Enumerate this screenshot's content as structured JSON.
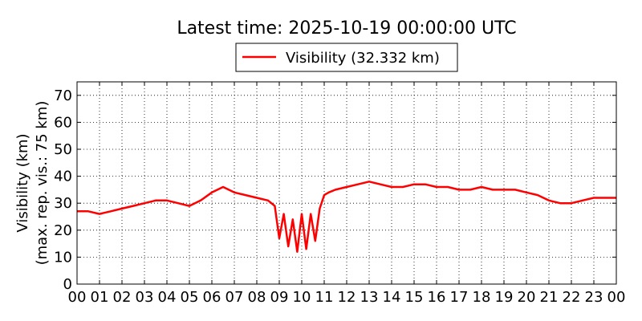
{
  "chart_data": {
    "type": "line",
    "title": "Latest time: 2025-10-19 00:00:00 UTC",
    "ylabel_line1": "Visibility (km)",
    "ylabel_line2": "(max. rep. vis.: 75 km)",
    "xlabel": "",
    "xlim": [
      0,
      24
    ],
    "ylim": [
      0,
      75
    ],
    "grid": true,
    "legend_position": "top-center",
    "x_tick_labels": [
      "00",
      "01",
      "02",
      "03",
      "04",
      "05",
      "06",
      "07",
      "08",
      "09",
      "10",
      "11",
      "12",
      "13",
      "14",
      "15",
      "16",
      "17",
      "18",
      "19",
      "20",
      "21",
      "22",
      "23",
      "00"
    ],
    "y_ticks": [
      0,
      10,
      20,
      30,
      40,
      50,
      60,
      70
    ],
    "series": [
      {
        "name": "Visibility (32.332 km)",
        "color": "#ff0000",
        "x_unit": "hours (UTC)",
        "x": [
          0,
          0.5,
          1,
          1.5,
          2,
          2.5,
          3,
          3.5,
          4,
          4.5,
          5,
          5.5,
          6,
          6.5,
          7,
          7.5,
          8,
          8.5,
          8.8,
          9,
          9.2,
          9.4,
          9.6,
          9.8,
          10,
          10.2,
          10.4,
          10.6,
          10.8,
          11,
          11.2,
          11.5,
          12,
          12.5,
          13,
          13.5,
          14,
          14.5,
          15,
          15.5,
          16,
          16.5,
          17,
          17.5,
          18,
          18.5,
          19,
          19.5,
          20,
          20.5,
          21,
          21.5,
          22,
          22.5,
          23,
          23.5,
          24
        ],
        "y": [
          27,
          27,
          26,
          27,
          28,
          29,
          30,
          31,
          31,
          30,
          29,
          31,
          34,
          36,
          34,
          33,
          32,
          31,
          29,
          17,
          26,
          14,
          24,
          12,
          26,
          13,
          26,
          16,
          28,
          33,
          34,
          35,
          36,
          37,
          38,
          37,
          36,
          36,
          37,
          37,
          36,
          36,
          35,
          35,
          36,
          35,
          35,
          35,
          34,
          33,
          31,
          30,
          30,
          31,
          32,
          32,
          32
        ]
      }
    ]
  }
}
